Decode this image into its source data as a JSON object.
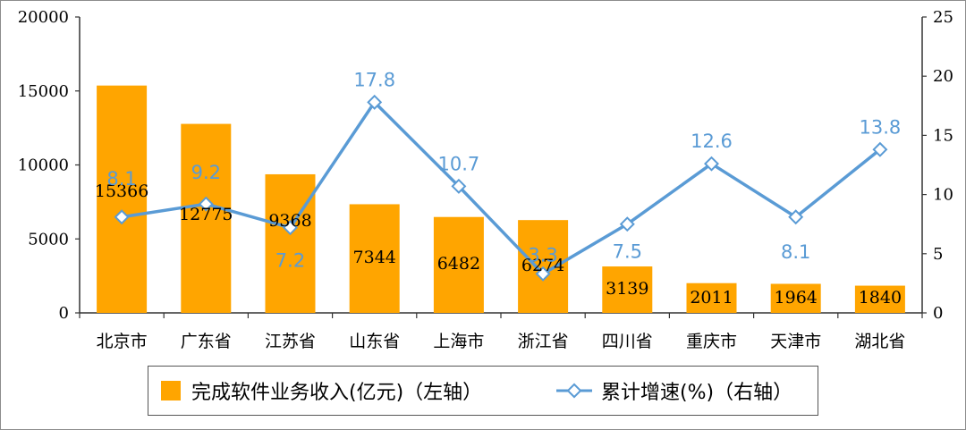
{
  "chart_data": {
    "type": "bar",
    "categories": [
      "北京市",
      "广东省",
      "江苏省",
      "山东省",
      "上海市",
      "浙江省",
      "四川省",
      "重庆市",
      "天津市",
      "湖北省"
    ],
    "series": [
      {
        "name": "完成软件业务收入(亿元)（左轴）",
        "type": "bar",
        "axis": "left",
        "values": [
          15366,
          12775,
          9368,
          7344,
          6482,
          6274,
          3139,
          2011,
          1964,
          1840
        ]
      },
      {
        "name": "累计增速(%)（右轴）",
        "type": "line",
        "axis": "right",
        "values": [
          8.1,
          9.2,
          7.2,
          17.8,
          10.7,
          3.3,
          7.5,
          12.6,
          8.1,
          13.8
        ]
      }
    ],
    "left_axis": {
      "ylim": [
        0,
        20000
      ],
      "ticks": [
        "0",
        "5000",
        "10000",
        "15000",
        "20000"
      ]
    },
    "right_axis": {
      "ylim": [
        0,
        25
      ],
      "ticks": [
        "0",
        "5",
        "10",
        "15",
        "20",
        "25"
      ]
    },
    "grid": false,
    "legend_position": "bottom",
    "colors": {
      "bar": "#ffa500",
      "line": "#5a9bd5"
    }
  },
  "legend": {
    "bar_label": "完成软件业务收入(亿元)（左轴）",
    "line_label": "累计增速(%)（右轴）"
  }
}
